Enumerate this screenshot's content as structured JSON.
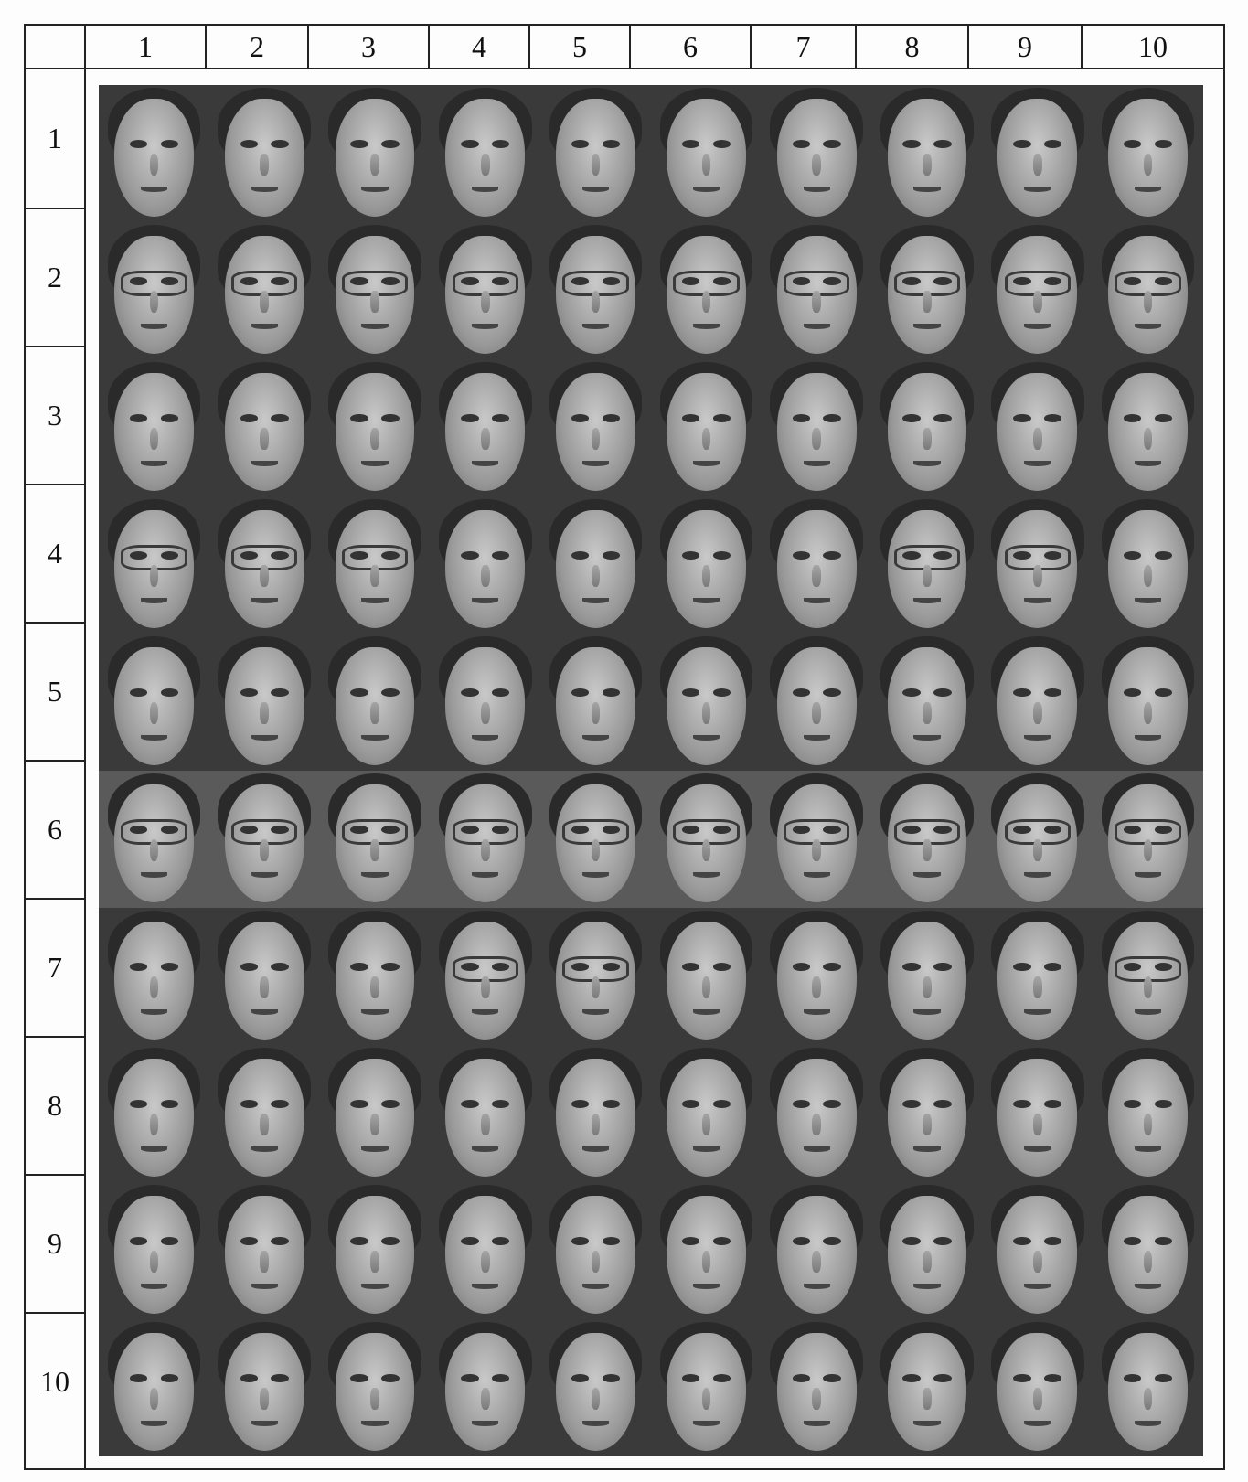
{
  "column_labels": [
    "1",
    "2",
    "3",
    "4",
    "5",
    "6",
    "7",
    "8",
    "9",
    "10"
  ],
  "row_labels": [
    "1",
    "2",
    "3",
    "4",
    "5",
    "6",
    "7",
    "8",
    "9",
    "10"
  ]
}
